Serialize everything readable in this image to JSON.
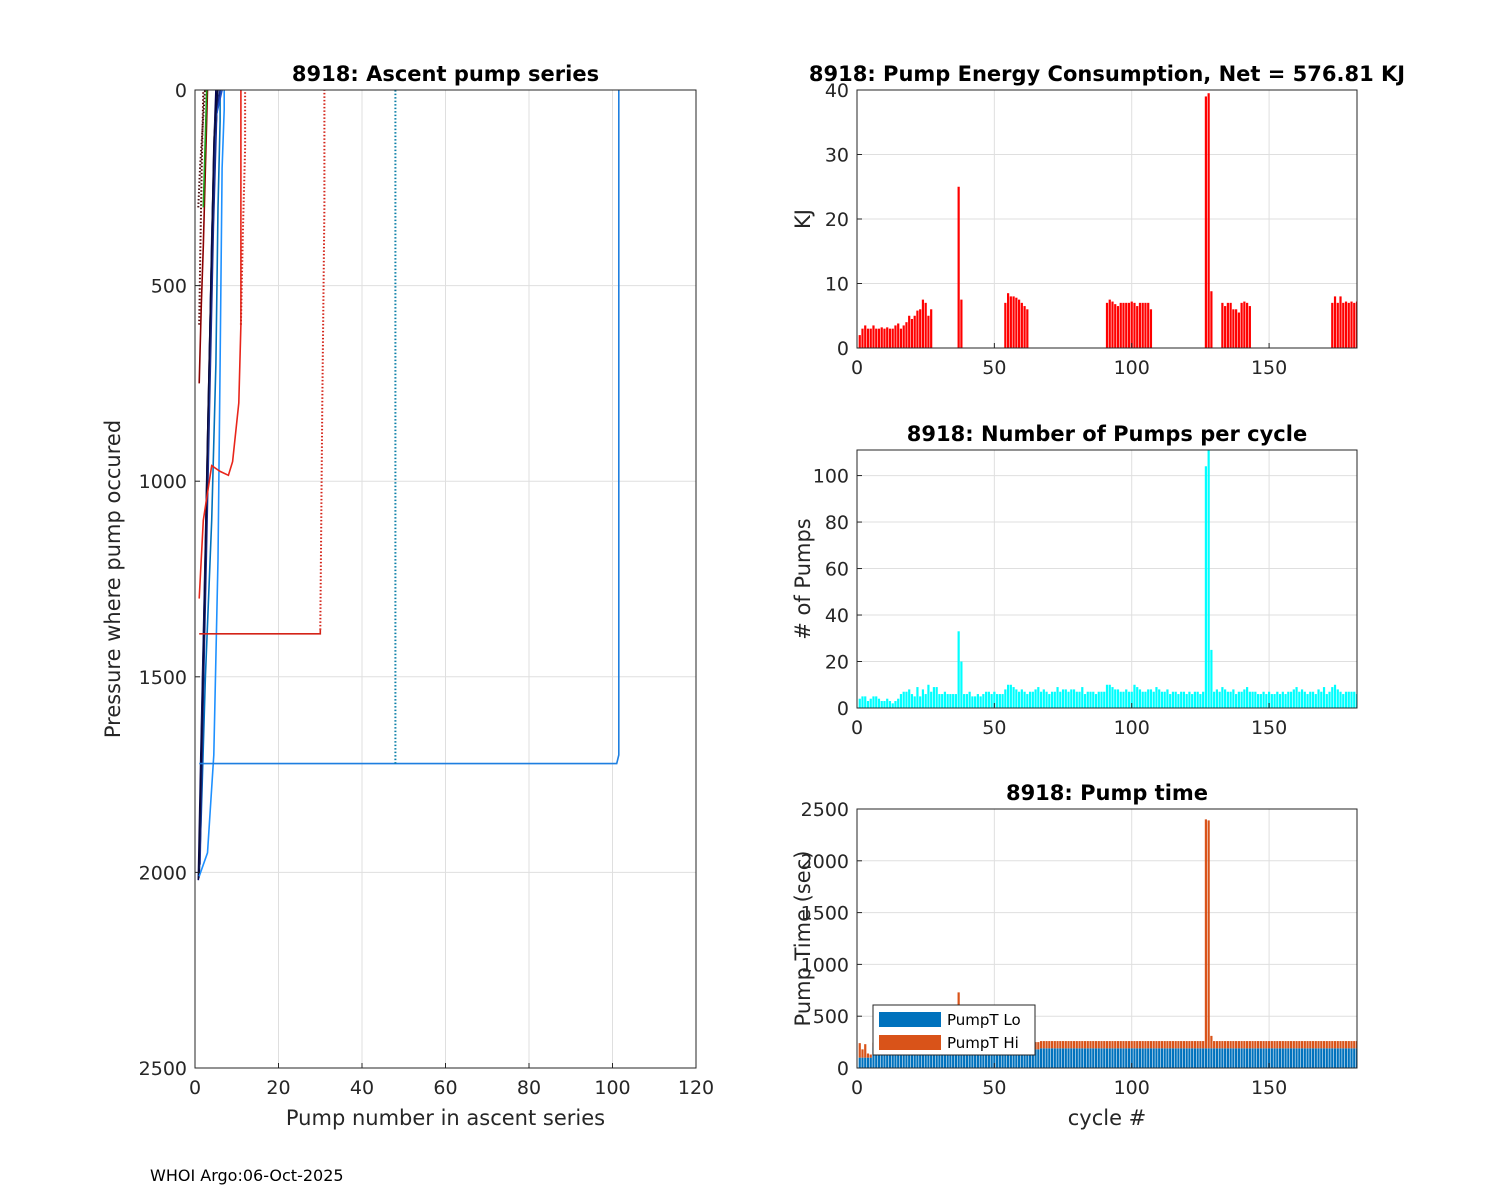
{
  "footer": "WHOI Argo:06-Oct-2025",
  "chart_data": [
    {
      "id": "ascent",
      "type": "line",
      "title": "8918: Ascent pump series",
      "xlabel": "Pump number in ascent series",
      "ylabel": "Pressure where pump occured",
      "xlim": [
        0,
        120
      ],
      "ylim": [
        0,
        2500
      ],
      "y_reversed": true,
      "grid": true,
      "xticks": [
        0,
        20,
        40,
        60,
        80,
        100,
        120
      ],
      "yticks": [
        0,
        500,
        1000,
        1500,
        2000,
        2500
      ],
      "series": [
        {
          "color": "#0072bd",
          "style": "solid",
          "x": [
            1,
            1.5,
            2.5,
            4,
            5,
            5.5,
            6,
            6
          ],
          "y": [
            2000,
            1850,
            1500,
            1100,
            700,
            300,
            80,
            0
          ]
        },
        {
          "color": "#0a1f6e",
          "style": "solid",
          "x": [
            1,
            1.8,
            2.6,
            3.3,
            4.2,
            5,
            5.5
          ],
          "y": [
            2010,
            1600,
            1200,
            800,
            400,
            100,
            0
          ]
        },
        {
          "color": "#000050",
          "style": "solid",
          "x": [
            0.8,
            1.4,
            2.2,
            3.0,
            3.8,
            4.5,
            5
          ],
          "y": [
            2020,
            1700,
            1300,
            900,
            500,
            150,
            0
          ]
        },
        {
          "color": "#1a2a8a",
          "style": "solid",
          "x": [
            1.2,
            2,
            2.8,
            3.6,
            4.4,
            5.2,
            6
          ],
          "y": [
            1980,
            1550,
            1150,
            750,
            350,
            60,
            0
          ]
        },
        {
          "color": "#2050c8",
          "style": "solid",
          "x": [
            1,
            1.7,
            2.5,
            3.3,
            4,
            4.8,
            6.5
          ],
          "y": [
            1990,
            1580,
            1180,
            780,
            380,
            80,
            0
          ]
        },
        {
          "color": "#0b0b3a",
          "style": "solid",
          "x": [
            0.9,
            1.6,
            2.4,
            3.1,
            3.9,
            4.6,
            5.4
          ],
          "y": [
            2015,
            1650,
            1250,
            850,
            450,
            120,
            0
          ]
        },
        {
          "color": "#1e90ff",
          "style": "solid",
          "x": [
            1,
            3,
            4.5,
            5.5,
            6,
            6.5,
            7,
            7
          ],
          "y": [
            2010,
            1950,
            1700,
            1200,
            700,
            200,
            50,
            0
          ]
        },
        {
          "color": "#1e7fe0",
          "style": "solid",
          "x": [
            1,
            101,
            101.5,
            101.5
          ],
          "y": [
            1722,
            1722,
            1700,
            0
          ]
        },
        {
          "color": "#0a7fa8",
          "style": "dotted",
          "x": [
            48,
            48,
            48
          ],
          "y": [
            1722,
            400,
            0
          ]
        },
        {
          "color": "#e8251a",
          "style": "solid",
          "x": [
            1,
            2,
            4,
            6,
            8,
            9,
            10.5,
            11,
            11
          ],
          "y": [
            1300,
            1100,
            960,
            975,
            985,
            950,
            800,
            600,
            0
          ]
        },
        {
          "color": "#d42318",
          "style": "solid",
          "x": [
            1,
            30,
            30
          ],
          "y": [
            1390,
            1390,
            1380
          ]
        },
        {
          "color": "#d42318",
          "style": "dotted",
          "x": [
            30,
            30.5,
            31,
            31
          ],
          "y": [
            1380,
            800,
            300,
            0
          ]
        },
        {
          "color": "#d42318",
          "style": "dotted",
          "x": [
            11,
            11.5,
            12,
            12
          ],
          "y": [
            600,
            350,
            150,
            0
          ]
        },
        {
          "color": "#8b0000",
          "style": "solid",
          "x": [
            1,
            1.5,
            2,
            2.5,
            3
          ],
          "y": [
            750,
            550,
            400,
            200,
            0
          ]
        },
        {
          "color": "#5a0000",
          "style": "dotted",
          "x": [
            1,
            1.3,
            1.6,
            2
          ],
          "y": [
            600,
            400,
            200,
            0
          ]
        },
        {
          "color": "#4b1010",
          "style": "dotted",
          "x": [
            0.8,
            1.2,
            1.8,
            2.4
          ],
          "y": [
            300,
            200,
            100,
            0
          ]
        },
        {
          "color": "#1aa01a",
          "style": "solid",
          "x": [
            2,
            2.4,
            2.8
          ],
          "y": [
            300,
            150,
            0
          ]
        }
      ]
    },
    {
      "id": "energy",
      "type": "bar",
      "title": "8918: Pump Energy Consumption,  Net = 576.81 KJ",
      "xlabel": "",
      "ylabel": "KJ",
      "xlim": [
        0,
        182
      ],
      "ylim": [
        0,
        40
      ],
      "grid": true,
      "color": "#ff0000",
      "xticks": [
        0,
        50,
        100,
        150
      ],
      "yticks": [
        0,
        10,
        20,
        30,
        40
      ],
      "x": [
        1,
        2,
        3,
        4,
        5,
        6,
        7,
        8,
        9,
        10,
        11,
        12,
        13,
        14,
        15,
        16,
        17,
        18,
        19,
        20,
        21,
        22,
        23,
        24,
        25,
        26,
        27,
        37,
        38,
        54,
        55,
        56,
        57,
        58,
        59,
        60,
        61,
        62,
        91,
        92,
        93,
        94,
        95,
        96,
        97,
        98,
        99,
        100,
        101,
        102,
        103,
        104,
        105,
        106,
        107,
        127,
        128,
        129,
        133,
        134,
        135,
        136,
        137,
        138,
        139,
        140,
        141,
        142,
        143,
        173,
        174,
        175,
        176,
        177,
        178,
        179,
        180,
        181,
        182
      ],
      "values": [
        2,
        3,
        3.5,
        3,
        3,
        3.5,
        3,
        3,
        3.2,
        3,
        3.2,
        3,
        3,
        3.5,
        3.8,
        3,
        3.5,
        4,
        5,
        4.5,
        5,
        5.8,
        6,
        7.5,
        7,
        5,
        6,
        25,
        7.5,
        7,
        8.5,
        8,
        8,
        7.8,
        7.5,
        7,
        6.5,
        6,
        7,
        7.5,
        7.2,
        6.8,
        6.5,
        7,
        7,
        7,
        7,
        7.2,
        7,
        6.5,
        7,
        7,
        7,
        7,
        6,
        39,
        39.5,
        8.8,
        7,
        6.5,
        7,
        7,
        6,
        6,
        5.5,
        7,
        7.2,
        7,
        6.5,
        7,
        8,
        7,
        8,
        7,
        7.2,
        7,
        7.2,
        7,
        7.2
      ]
    },
    {
      "id": "pumps",
      "type": "bar",
      "title": "8918: Number of Pumps per cycle",
      "xlabel": "",
      "ylabel": "# of Pumps",
      "xlim": [
        0,
        182
      ],
      "ylim": [
        0,
        111
      ],
      "grid": true,
      "color": "#00ffff",
      "xticks": [
        0,
        50,
        100,
        150
      ],
      "yticks": [
        0,
        20,
        40,
        60,
        80,
        100
      ],
      "x": [
        1,
        2,
        3,
        4,
        5,
        6,
        7,
        8,
        9,
        10,
        11,
        12,
        13,
        14,
        15,
        16,
        17,
        18,
        19,
        20,
        21,
        22,
        23,
        24,
        25,
        26,
        27,
        28,
        29,
        30,
        31,
        32,
        33,
        34,
        35,
        36,
        37,
        38,
        39,
        40,
        41,
        42,
        43,
        44,
        45,
        46,
        47,
        48,
        49,
        50,
        51,
        52,
        53,
        54,
        55,
        56,
        57,
        58,
        59,
        60,
        61,
        62,
        63,
        64,
        65,
        66,
        67,
        68,
        69,
        70,
        71,
        72,
        73,
        74,
        75,
        76,
        77,
        78,
        79,
        80,
        81,
        82,
        83,
        84,
        85,
        86,
        87,
        88,
        89,
        90,
        91,
        92,
        93,
        94,
        95,
        96,
        97,
        98,
        99,
        100,
        101,
        102,
        103,
        104,
        105,
        106,
        107,
        108,
        109,
        110,
        111,
        112,
        113,
        114,
        115,
        116,
        117,
        118,
        119,
        120,
        121,
        122,
        123,
        124,
        125,
        126,
        127,
        128,
        129,
        130,
        131,
        132,
        133,
        134,
        135,
        136,
        137,
        138,
        139,
        140,
        141,
        142,
        143,
        144,
        145,
        146,
        147,
        148,
        149,
        150,
        151,
        152,
        153,
        154,
        155,
        156,
        157,
        158,
        159,
        160,
        161,
        162,
        163,
        164,
        165,
        166,
        167,
        168,
        169,
        170,
        171,
        172,
        173,
        174,
        175,
        176,
        177,
        178,
        179,
        180,
        181,
        182
      ],
      "values": [
        4,
        5,
        5,
        3,
        4,
        5,
        5,
        4,
        3,
        3,
        4,
        3,
        2,
        3,
        4,
        6,
        7,
        7,
        8,
        6,
        5,
        9,
        5,
        8,
        6,
        10,
        7,
        9,
        9,
        6,
        6,
        7,
        6,
        6,
        6,
        6,
        33,
        20,
        6,
        6,
        7,
        5,
        5,
        6,
        5,
        6,
        7,
        7,
        6,
        7,
        6,
        6,
        6,
        8,
        10,
        10,
        9,
        8,
        7,
        8,
        7,
        6,
        7,
        7,
        8,
        9,
        7,
        8,
        7,
        6,
        7,
        7,
        9,
        7,
        8,
        8,
        7,
        8,
        8,
        7,
        7,
        9,
        6,
        7,
        7,
        7,
        6,
        7,
        7,
        7,
        10,
        10,
        9,
        8,
        8,
        7,
        7,
        8,
        7,
        7,
        10,
        9,
        8,
        7,
        7,
        8,
        8,
        7,
        9,
        8,
        7,
        7,
        8,
        6,
        7,
        7,
        6,
        7,
        7,
        6,
        7,
        6,
        7,
        7,
        6,
        7,
        104,
        112,
        25,
        7,
        8,
        7,
        9,
        8,
        7,
        7,
        8,
        6,
        7,
        7,
        8,
        9,
        7,
        7,
        7,
        6,
        6,
        7,
        6,
        7,
        6,
        6,
        7,
        6,
        7,
        6,
        7,
        7,
        8,
        9,
        7,
        8,
        7,
        6,
        7,
        7,
        6,
        8,
        7,
        9,
        6,
        7,
        9,
        10,
        8,
        7,
        6,
        7,
        7,
        7,
        7,
        6
      ]
    },
    {
      "id": "pumptime",
      "type": "bar",
      "title": "8918: Pump time",
      "xlabel": "cycle #",
      "ylabel": "Pump Time (sec)",
      "xlim": [
        0,
        182
      ],
      "ylim": [
        0,
        2500
      ],
      "grid": true,
      "stacked": true,
      "xticks": [
        0,
        50,
        100,
        150
      ],
      "yticks": [
        0,
        500,
        1000,
        1500,
        2000,
        2500
      ],
      "legend": {
        "position": "lower-left",
        "entries": [
          "PumpT Lo",
          "PumpT Hi"
        ]
      },
      "series": [
        {
          "name": "PumpT Lo",
          "color": "#0072bd",
          "lo_default": 190,
          "spikes": {}
        },
        {
          "name": "PumpT Hi",
          "color": "#d95319",
          "hi_default": 70,
          "spikes": {
            "1": 140,
            "2": 80,
            "3": 130,
            "4": 40,
            "5": 30,
            "37": 540,
            "38": 100,
            "127": 2210,
            "128": 2200,
            "129": 120
          }
        }
      ]
    }
  ]
}
